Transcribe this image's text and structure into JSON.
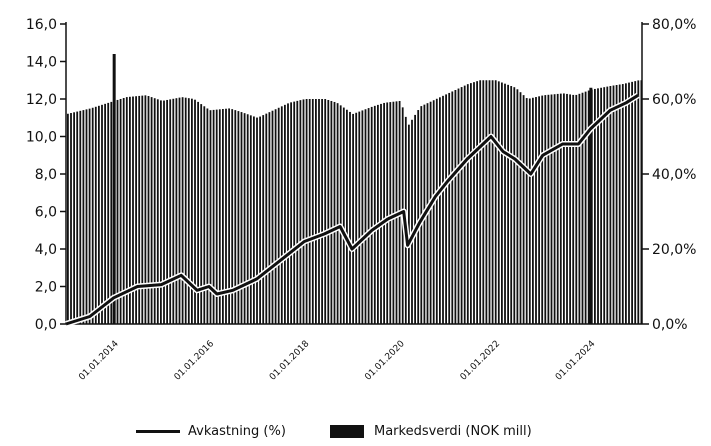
{
  "chart_data": {
    "type": "bar+line",
    "title": "",
    "xlabel": "",
    "left_axis": {
      "ticks": [
        "0,0",
        "2,0",
        "4,0",
        "6,0",
        "8,0",
        "10,0",
        "12,0",
        "14,0",
        "16,0"
      ],
      "range": [
        0,
        16
      ]
    },
    "right_axis": {
      "ticks": [
        "0,0%",
        "20,0%",
        "40,0%",
        "60,0%",
        "80,0%"
      ],
      "range": [
        0,
        80
      ]
    },
    "x_tick_labels": [
      "01.01.2014",
      "01.01.2016",
      "01.01.2018",
      "01.01.2020",
      "01.01.2022",
      "01.01.2024"
    ],
    "x_range": [
      "2013-01",
      "2025-02"
    ],
    "legend_position": "bottom",
    "series": [
      {
        "name": "Markedsverdi (NOK mill)",
        "kind": "bar",
        "axis": "left",
        "color": "#111111",
        "points": [
          [
            "2013-01",
            11.2
          ],
          [
            "2013-07",
            11.5
          ],
          [
            "2014-01",
            11.9
          ],
          [
            "2014-04",
            12.1
          ],
          [
            "2014-09",
            12.2
          ],
          [
            "2015-01",
            11.9
          ],
          [
            "2015-06",
            12.1
          ],
          [
            "2015-09",
            12.0
          ],
          [
            "2016-01",
            11.4
          ],
          [
            "2016-06",
            11.5
          ],
          [
            "2016-09",
            11.3
          ],
          [
            "2017-01",
            11.0
          ],
          [
            "2017-06",
            11.5
          ],
          [
            "2017-09",
            11.8
          ],
          [
            "2018-01",
            12.0
          ],
          [
            "2018-06",
            12.0
          ],
          [
            "2018-09",
            11.8
          ],
          [
            "2019-01",
            11.2
          ],
          [
            "2019-06",
            11.6
          ],
          [
            "2019-09",
            11.8
          ],
          [
            "2020-01",
            11.9
          ],
          [
            "2020-03",
            10.6
          ],
          [
            "2020-06",
            11.6
          ],
          [
            "2020-09",
            11.9
          ],
          [
            "2021-01",
            12.3
          ],
          [
            "2021-06",
            12.8
          ],
          [
            "2021-09",
            13.0
          ],
          [
            "2022-01",
            13.0
          ],
          [
            "2022-06",
            12.6
          ],
          [
            "2022-09",
            12.0
          ],
          [
            "2023-01",
            12.2
          ],
          [
            "2023-06",
            12.3
          ],
          [
            "2023-09",
            12.2
          ],
          [
            "2024-01",
            12.5
          ],
          [
            "2024-06",
            12.7
          ],
          [
            "2024-09",
            12.8
          ],
          [
            "2025-01",
            13.0
          ]
        ],
        "spikes": [
          [
            "2014-01",
            14.4
          ],
          [
            "2024-01",
            12.6
          ]
        ]
      },
      {
        "name": "Avkastning (%)",
        "kind": "line",
        "axis": "right",
        "color": "#111111",
        "points": [
          [
            "2013-01",
            0.0
          ],
          [
            "2013-07",
            2.0
          ],
          [
            "2014-01",
            7.0
          ],
          [
            "2014-07",
            10.0
          ],
          [
            "2015-01",
            10.5
          ],
          [
            "2015-06",
            13.0
          ],
          [
            "2015-10",
            9.0
          ],
          [
            "2016-01",
            10.0
          ],
          [
            "2016-03",
            8.0
          ],
          [
            "2016-07",
            9.0
          ],
          [
            "2017-01",
            12.0
          ],
          [
            "2017-07",
            17.0
          ],
          [
            "2018-01",
            22.0
          ],
          [
            "2018-06",
            24.0
          ],
          [
            "2018-10",
            26.0
          ],
          [
            "2019-01",
            20.0
          ],
          [
            "2019-06",
            25.0
          ],
          [
            "2019-10",
            28.0
          ],
          [
            "2020-02",
            30.0
          ],
          [
            "2020-03",
            21.0
          ],
          [
            "2020-06",
            27.0
          ],
          [
            "2020-10",
            34.0
          ],
          [
            "2021-01",
            38.0
          ],
          [
            "2021-06",
            44.0
          ],
          [
            "2021-12",
            50.0
          ],
          [
            "2022-03",
            46.0
          ],
          [
            "2022-06",
            44.0
          ],
          [
            "2022-10",
            40.0
          ],
          [
            "2023-01",
            45.0
          ],
          [
            "2023-06",
            48.0
          ],
          [
            "2023-10",
            48.0
          ],
          [
            "2024-01",
            52.0
          ],
          [
            "2024-06",
            57.0
          ],
          [
            "2024-10",
            59.0
          ],
          [
            "2025-01",
            61.0
          ]
        ]
      }
    ]
  },
  "legend": {
    "line_label": "Avkastning (%)",
    "bar_label": "Markedsverdi (NOK mill)"
  }
}
